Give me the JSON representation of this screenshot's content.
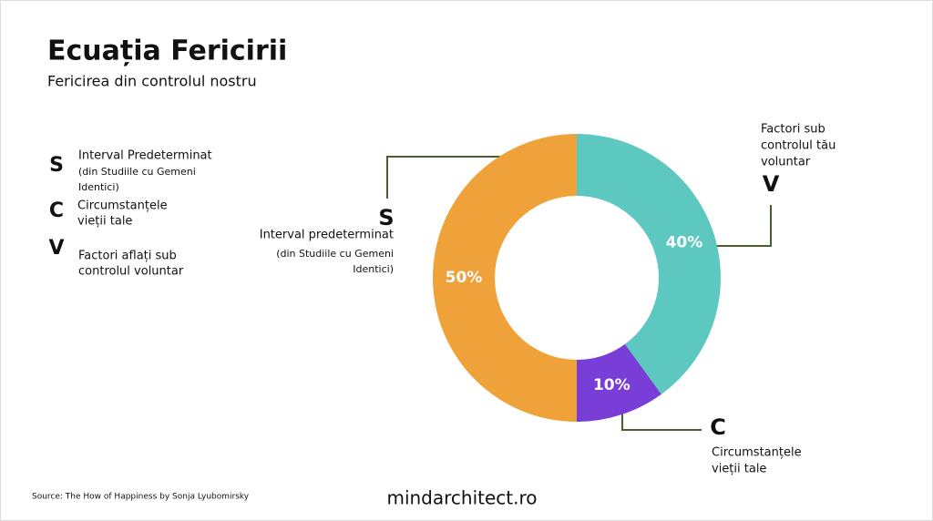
{
  "chart_data": {
    "type": "donut",
    "title": "Ecuația Fericirii",
    "subtitle": "Fericirea din controlul nostru",
    "categories": [
      "V",
      "C",
      "S"
    ],
    "values": [
      40,
      10,
      50
    ],
    "value_labels": [
      "40%",
      "10%",
      "50%"
    ],
    "colors": [
      "#5cc8bf",
      "#7a3ed8",
      "#f0a23a"
    ],
    "callouts": [
      {
        "lines": [
          "Factori sub",
          "controlul tău",
          "voluntar"
        ]
      },
      {
        "lines": [
          "Circumstanțele",
          "vieții tale"
        ]
      },
      {
        "lines": [
          "Interval predeterminat"
        ],
        "note": [
          "(din Studiile cu Gemeni",
          "Identici)"
        ]
      }
    ]
  },
  "legend_panel": {
    "items": [
      {
        "letter": "S",
        "lines": [
          "Interval Predeterminat"
        ],
        "note": [
          "(din Studiile cu Gemeni",
          "Identici)"
        ]
      },
      {
        "letter": "C",
        "lines": [
          "Circumstanțele",
          "vieții tale"
        ]
      },
      {
        "letter": "V",
        "lines": [
          "Factori aflați sub",
          "controlul voluntar"
        ]
      }
    ]
  },
  "source": "Source: The How of Happiness by Sonja Lyubomirsky",
  "footer": "mindarchitect.ro"
}
